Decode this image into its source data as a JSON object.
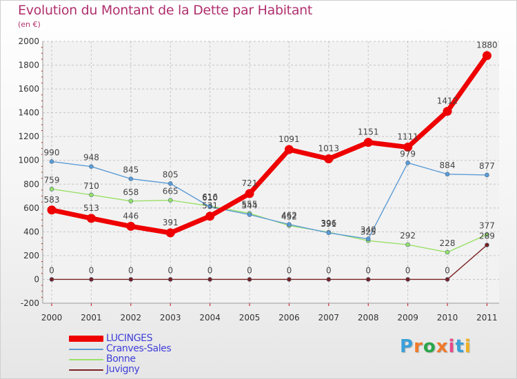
{
  "title": "Evolution du Montant de la Dette par Habitant",
  "subtitle": "(en €)",
  "logo": {
    "letters": [
      "P",
      "r",
      "o",
      "x",
      "i",
      "t",
      "i"
    ],
    "colors": [
      "#3aa0d8",
      "#f07a2a",
      "#2aa64a",
      "#f07a2a",
      "#e84a8a",
      "#3aa0d8",
      "#f0b020"
    ]
  },
  "chart_data": {
    "type": "line",
    "x": [
      "2000",
      "2001",
      "2002",
      "2003",
      "2004",
      "2005",
      "2006",
      "2007",
      "2008",
      "2009",
      "2010",
      "2011"
    ],
    "ylim": [
      -200,
      2000
    ],
    "yticks": [
      "-200",
      "0",
      "200",
      "400",
      "600",
      "800",
      "1000",
      "1200",
      "1400",
      "1600",
      "1800",
      "2000"
    ],
    "grid": true,
    "legend_position": "bottom-left",
    "series": [
      {
        "name": "LUCINGES",
        "color": "#ee0000",
        "emphasis": true,
        "values": [
          583,
          513,
          446,
          391,
          531,
          721,
          1091,
          1013,
          1151,
          1111,
          1412,
          1880
        ],
        "labels": [
          "583",
          "513",
          "446",
          "391",
          "531",
          "721",
          "1091",
          "1013",
          "1151",
          "1111",
          "1412",
          "1880"
        ]
      },
      {
        "name": "Cranves-Sales",
        "color": "#5b9bd5",
        "values": [
          990,
          948,
          845,
          805,
          610,
          544,
          462,
          391,
          340,
          979,
          884,
          877
        ],
        "labels": [
          "990",
          "948",
          "845",
          "805",
          "610",
          "544",
          "462",
          "391",
          "340",
          "979",
          "884",
          "877"
        ]
      },
      {
        "name": "Bonne",
        "color": "#99e066",
        "values": [
          759,
          710,
          658,
          665,
          616,
          555,
          452,
          396,
          325,
          292,
          228,
          377
        ],
        "labels": [
          "759",
          "710",
          "658",
          "665",
          "616",
          "555",
          "452",
          "396",
          "325",
          "292",
          "228",
          "377"
        ]
      },
      {
        "name": "Juvigny",
        "color": "#7a2020",
        "values": [
          0,
          0,
          0,
          0,
          0,
          0,
          0,
          0,
          0,
          0,
          0,
          289
        ],
        "labels": [
          "0",
          "0",
          "0",
          "0",
          "0",
          "0",
          "0",
          "0",
          "0",
          "0",
          "0",
          "289"
        ]
      }
    ]
  }
}
